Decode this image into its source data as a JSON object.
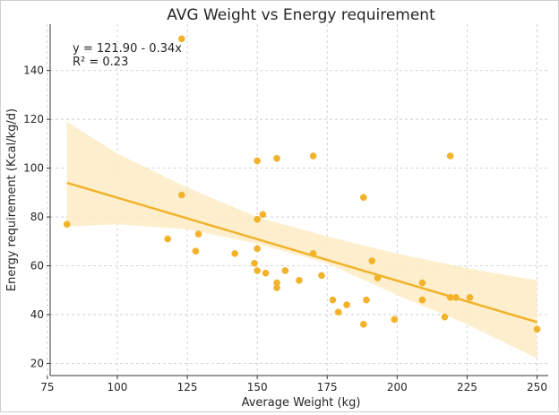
{
  "chart_data": {
    "type": "scatter",
    "title": "AVG Weight vs Energy requirement",
    "xlabel": "Average Weight (kg)",
    "ylabel": "Energy requirement (Kcal/kg/d)",
    "xlim": [
      76,
      254
    ],
    "ylim": [
      15,
      159
    ],
    "xticks": [
      75,
      100,
      125,
      150,
      175,
      200,
      225,
      250
    ],
    "yticks": [
      20,
      40,
      60,
      80,
      100,
      120,
      140
    ],
    "grid": true,
    "point_color": "#f2b32b",
    "line_color": "#f2b32b",
    "band_color": "#fdedc8",
    "annotation": {
      "equation": "y = 121.90 - 0.34x",
      "r_squared": "R² = 0.23"
    },
    "regression": {
      "intercept": 121.9,
      "slope": -0.34,
      "x_range": [
        82,
        250
      ]
    },
    "confidence_band": {
      "x": [
        82,
        100,
        125,
        150,
        175,
        200,
        225,
        250
      ],
      "upper": [
        119,
        106,
        92,
        80,
        72,
        65,
        59,
        54
      ],
      "lower": [
        76,
        77,
        75,
        69,
        61,
        48,
        36,
        22
      ]
    },
    "points": [
      {
        "x": 82,
        "y": 77
      },
      {
        "x": 118,
        "y": 71
      },
      {
        "x": 123,
        "y": 153
      },
      {
        "x": 123,
        "y": 89
      },
      {
        "x": 128,
        "y": 66
      },
      {
        "x": 129,
        "y": 73
      },
      {
        "x": 142,
        "y": 65
      },
      {
        "x": 149,
        "y": 61
      },
      {
        "x": 150,
        "y": 103
      },
      {
        "x": 150,
        "y": 79
      },
      {
        "x": 150,
        "y": 67
      },
      {
        "x": 150,
        "y": 58
      },
      {
        "x": 152,
        "y": 81
      },
      {
        "x": 153,
        "y": 57
      },
      {
        "x": 157,
        "y": 104
      },
      {
        "x": 157,
        "y": 53
      },
      {
        "x": 157,
        "y": 51
      },
      {
        "x": 160,
        "y": 58
      },
      {
        "x": 165,
        "y": 54
      },
      {
        "x": 170,
        "y": 105
      },
      {
        "x": 170,
        "y": 65
      },
      {
        "x": 173,
        "y": 56
      },
      {
        "x": 177,
        "y": 46
      },
      {
        "x": 179,
        "y": 41
      },
      {
        "x": 182,
        "y": 44
      },
      {
        "x": 188,
        "y": 88
      },
      {
        "x": 188,
        "y": 36
      },
      {
        "x": 189,
        "y": 46
      },
      {
        "x": 191,
        "y": 62
      },
      {
        "x": 193,
        "y": 55
      },
      {
        "x": 199,
        "y": 38
      },
      {
        "x": 209,
        "y": 53
      },
      {
        "x": 209,
        "y": 46
      },
      {
        "x": 217,
        "y": 39
      },
      {
        "x": 219,
        "y": 105
      },
      {
        "x": 219,
        "y": 47
      },
      {
        "x": 221,
        "y": 47
      },
      {
        "x": 226,
        "y": 47
      },
      {
        "x": 250,
        "y": 34
      }
    ]
  }
}
